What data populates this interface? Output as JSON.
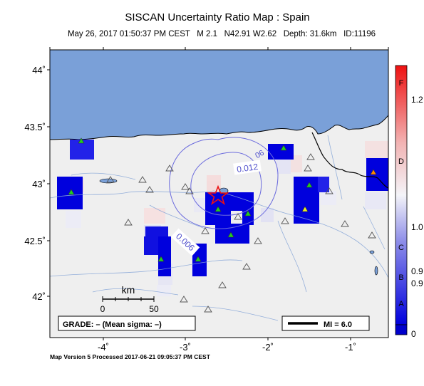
{
  "title": "SISCAN Uncertainty Ratio Map : Spain",
  "subtitle": "May 26, 2017 01:50:37 PM CEST   M 2.1   N42.91 W2.62   Depth: 31.6km   ID:11196",
  "footer": "Map Version 5 Processed 2017-06-21 09:05:37 PM CEST",
  "grade_box": "GRADE: – (Mean sigma: –)",
  "mi_legend": "MI = 6.0",
  "scale_bar": {
    "unit": "km",
    "ticks": [
      "0",
      "50"
    ]
  },
  "lat_labels": [
    "44˚",
    "43.5˚",
    "43˚",
    "42.5˚",
    "42˚"
  ],
  "lon_labels": [
    "-4˚",
    "-3˚",
    "-2˚",
    "-1˚"
  ],
  "contours": [
    "0.012",
    "0.006",
    "06"
  ],
  "colorbar": {
    "grades": [
      "F",
      "D",
      "C",
      "B",
      "A"
    ],
    "values": [
      "1.2",
      "1.0",
      "0.9",
      "0.9",
      "0"
    ]
  },
  "colors": {
    "sea": "#7aa0d8",
    "land": "#efefef",
    "high": "#ee1111",
    "low": "#0000dd",
    "epicenter": "#ee1111"
  }
}
